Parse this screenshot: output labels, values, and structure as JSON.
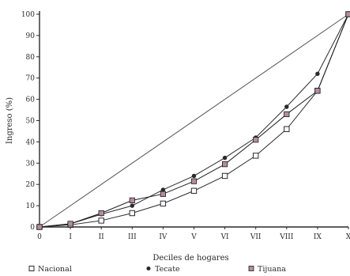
{
  "chart_data": {
    "type": "line",
    "title": "",
    "xlabel": "Deciles de hogares",
    "ylabel": "Ingreso (%)",
    "ylim": [
      0,
      100
    ],
    "yticks": [
      0,
      10,
      20,
      30,
      40,
      50,
      60,
      70,
      80,
      90,
      100
    ],
    "ytick_labels": [
      "0",
      "10",
      "20",
      "30",
      "40",
      "50",
      "60",
      "70",
      "80",
      "90",
      "100"
    ],
    "x": [
      "0",
      "I",
      "II",
      "III",
      "IV",
      "V",
      "VI",
      "VII",
      "VIII",
      "IX",
      "X"
    ],
    "grid": false,
    "legend_position": "bottom",
    "equality_line": true,
    "series": [
      {
        "name": "Nacional",
        "marker": "open-square",
        "color": "#2a2a2a",
        "values": [
          0,
          1,
          3,
          6.5,
          11,
          17,
          24,
          33.5,
          46,
          64,
          100
        ]
      },
      {
        "name": "Tecate",
        "marker": "filled-circle",
        "color": "#2a2a2a",
        "values": [
          0,
          1.5,
          6,
          10,
          17.5,
          24,
          32.5,
          42,
          56.5,
          72,
          100
        ]
      },
      {
        "name": "Tijuana",
        "marker": "filled-square",
        "color": "#1c1c1c",
        "marker_color": "#b48ca0",
        "values": [
          0,
          1.5,
          6.5,
          12.5,
          15.5,
          21.5,
          29.5,
          41,
          53,
          64,
          100
        ]
      }
    ]
  }
}
